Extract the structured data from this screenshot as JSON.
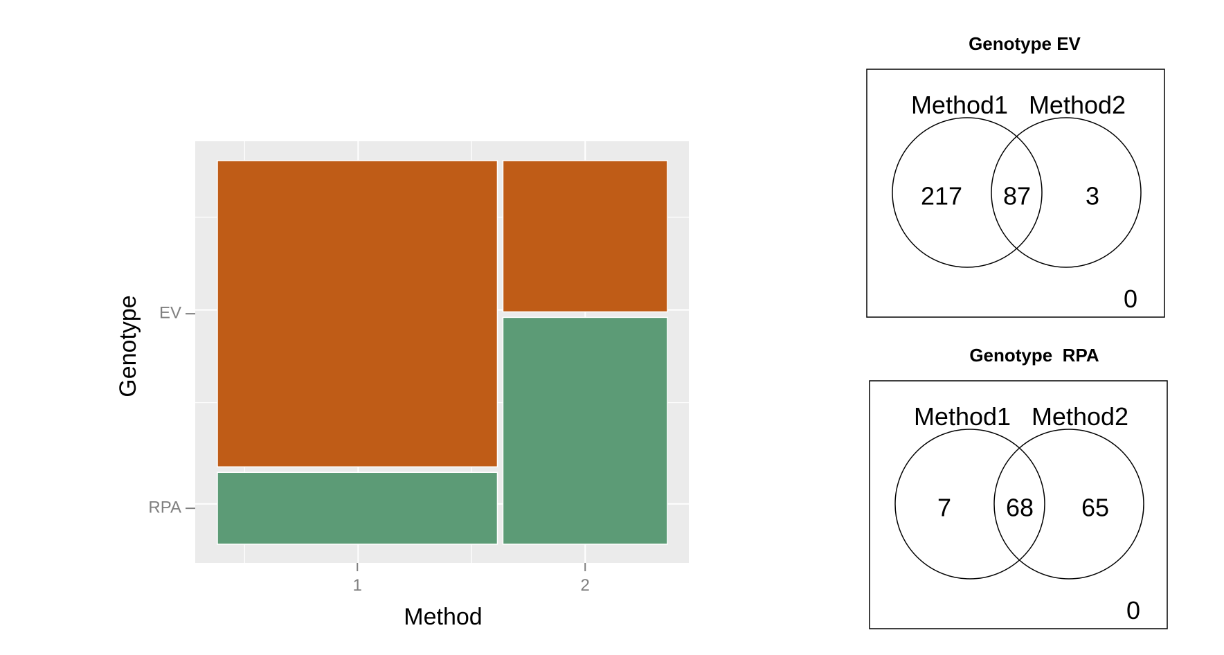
{
  "chart_data": [
    {
      "type": "mosaic",
      "xlabel": "Method",
      "ylabel": "Genotype",
      "x_categories": [
        "1",
        "2"
      ],
      "y_categories": [
        "EV",
        "RPA"
      ],
      "x_proportions": [
        0.63,
        0.37
      ],
      "cells": [
        {
          "x": "1",
          "y": "EV",
          "proportion": 0.81
        },
        {
          "x": "1",
          "y": "RPA",
          "proportion": 0.19
        },
        {
          "x": "2",
          "y": "EV",
          "proportion": 0.4
        },
        {
          "x": "2",
          "y": "RPA",
          "proportion": 0.6
        }
      ],
      "colors": {
        "EV": "#bf5c17",
        "RPA": "#5c9b76",
        "panel": "#ebebeb",
        "grid": "#ffffff"
      },
      "grid": true
    },
    {
      "type": "venn",
      "title": "Genotype EV",
      "sets": [
        "Method1",
        "Method2"
      ],
      "only_a": "217",
      "both": "87",
      "only_b": "3",
      "neither": "0"
    },
    {
      "type": "venn",
      "title": "Genotype  RPA",
      "sets": [
        "Method1",
        "Method2"
      ],
      "only_a": "7",
      "both": "68",
      "only_b": "65",
      "neither": "0"
    }
  ]
}
